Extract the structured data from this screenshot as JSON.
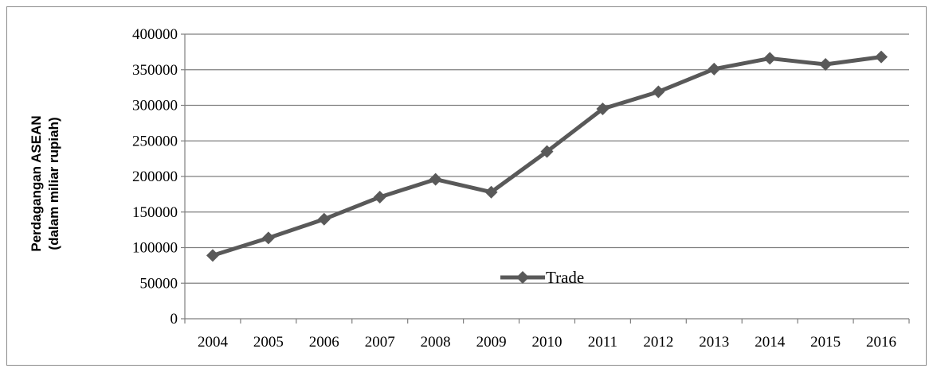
{
  "chart_data": {
    "type": "line",
    "categories": [
      "2004",
      "2005",
      "2006",
      "2007",
      "2008",
      "2009",
      "2010",
      "2011",
      "2012",
      "2013",
      "2014",
      "2015",
      "2016"
    ],
    "series": [
      {
        "name": "Trade",
        "values": [
          89000,
          113500,
          140000,
          171000,
          196000,
          178000,
          235000,
          295000,
          319000,
          351000,
          366000,
          357500,
          368000
        ]
      }
    ],
    "ylabel_line1": "Perdagangan ASEAN",
    "ylabel_line2": "(dalam miliar rupiah)",
    "ylim": [
      0,
      400000
    ],
    "yticks": [
      "0",
      "50000",
      "100000",
      "150000",
      "200000",
      "250000",
      "300000",
      "350000",
      "400000"
    ],
    "grid": true,
    "legend_position": "inside-bottom-center",
    "colors": {
      "line": "#595959",
      "marker": "#595959",
      "grid": "#7f7f7f",
      "axis": "#7f7f7f"
    }
  }
}
